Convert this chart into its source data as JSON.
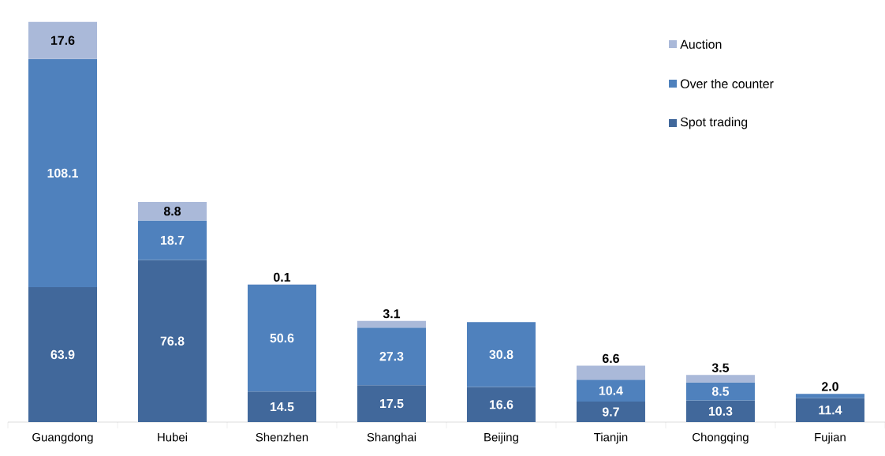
{
  "chart_data": {
    "type": "bar",
    "stacked": true,
    "legend": "top right",
    "grid": false,
    "categories": [
      "Guangdong",
      "Hubei",
      "Shenzhen",
      "Shanghai",
      "Beijing",
      "Tianjin",
      "Chongqing",
      "Fujian"
    ],
    "series": [
      {
        "name": "Spot trading",
        "color": "#41689b",
        "values": [
          63.9,
          76.8,
          14.5,
          17.5,
          16.6,
          9.7,
          10.3,
          11.4
        ],
        "value_labels": [
          "63.9",
          "76.8",
          "14.5",
          "17.5",
          "16.6",
          "9.7",
          "10.3",
          "11.4"
        ]
      },
      {
        "name": "Over the counter",
        "color": "#4f81bd",
        "values": [
          108.1,
          18.7,
          50.6,
          27.3,
          30.8,
          10.4,
          8.5,
          2.0
        ],
        "value_labels": [
          "108.1",
          "18.7",
          "50.6",
          "27.3",
          "30.8",
          "10.4",
          "8.5",
          "2.0"
        ]
      },
      {
        "name": "Auction",
        "color": "#aab9d9",
        "values": [
          17.6,
          8.8,
          0.1,
          3.1,
          null,
          6.6,
          3.5,
          null
        ],
        "value_labels": [
          "17.6",
          "8.8",
          "0.1",
          "3.1",
          null,
          "6.6",
          "3.5",
          null
        ]
      }
    ]
  }
}
